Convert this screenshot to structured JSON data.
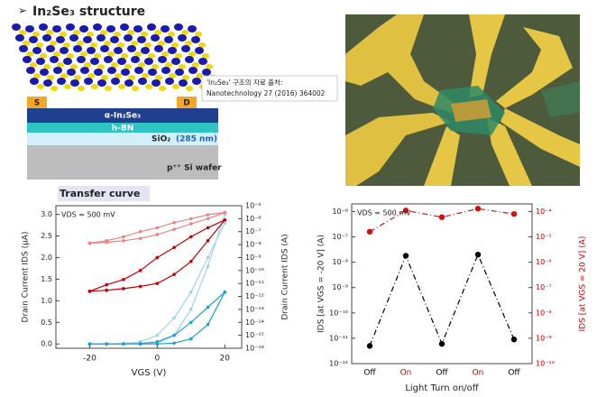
{
  "header": {
    "bullet": "➢",
    "title": "In₂Se₃ structure"
  },
  "device": {
    "source": "S",
    "drain": "D",
    "channel": "α-In₂Se₃",
    "dielectric": "h-BN",
    "oxide": "SiO₂",
    "oxide_thickness": "(285 nm)",
    "substrate": "p⁺⁺ Si wafer"
  },
  "citation": {
    "line1": "'In₂Se₃' 구조의 자료 출처:",
    "line2": "Nanotechnology 27 (2016) 364002"
  },
  "chart_data": [
    {
      "type": "line",
      "title": "Transfer curve",
      "annotation": "VDS = 500 mV",
      "x_label": "VGS (V)",
      "y_label": "Drain Current IDS (μA)",
      "y2_label": "Drain Current IDS (A)",
      "x": [
        -20,
        -15,
        -10,
        -5,
        0,
        5,
        10,
        15,
        20
      ],
      "xlim": [
        -30,
        25
      ],
      "xticks": [
        -20,
        0,
        20
      ],
      "ylim": [
        -0.1,
        3.2
      ],
      "yticks": [
        {
          "value": 0,
          "label": "0.0"
        },
        0.5,
        {
          "value": 1,
          "label": "1.0"
        },
        1.5,
        {
          "value": 2,
          "label": "2.0"
        },
        2.5,
        {
          "value": 3,
          "label": "3.0"
        }
      ],
      "y2lim": [
        1e-16,
        1e-05
      ],
      "y2log": true,
      "y2ticks": [
        {
          "value": 1e-05,
          "label": "10⁻⁵"
        },
        {
          "value": 1e-06,
          "label": "10⁻⁶"
        },
        {
          "value": 1e-07,
          "label": "10⁻⁷"
        },
        {
          "value": 1e-08,
          "label": "10⁻⁸"
        },
        {
          "value": 1e-09,
          "label": "10⁻⁹"
        },
        {
          "value": 1e-10,
          "label": "10⁻¹⁰"
        },
        {
          "value": 1e-11,
          "label": "10⁻¹¹"
        },
        {
          "value": 1e-12,
          "label": "10⁻¹²"
        },
        {
          "value": 1e-13,
          "label": "10⁻¹³"
        },
        {
          "value": 1e-14,
          "label": "10⁻¹⁴"
        },
        {
          "value": 1e-15,
          "label": "10⁻¹⁵"
        },
        {
          "value": 1e-16,
          "label": "10⁻¹⁶"
        }
      ],
      "series": [
        {
          "color": "#9fd3ea",
          "values": [
            0,
            0,
            0,
            0,
            0.02,
            0.2,
            0.8,
            1.8,
            3.0
          ]
        },
        {
          "color": "#9fd3ea",
          "values": [
            0,
            0,
            0.01,
            0.05,
            0.2,
            0.6,
            1.2,
            2.0,
            2.8
          ]
        },
        {
          "color": "#1aa3c9",
          "values": [
            0,
            0,
            0,
            0,
            0,
            0.02,
            0.12,
            0.45,
            1.2
          ]
        },
        {
          "color": "#1aa3c9",
          "values": [
            0,
            0,
            0,
            0.01,
            0.05,
            0.2,
            0.5,
            0.85,
            1.2
          ]
        },
        {
          "color": "#f08080",
          "axis": "y2",
          "values": [
            1.3e-08,
            2e-08,
            4e-08,
            1e-07,
            2e-07,
            5e-07,
            1e-06,
            2e-06,
            3e-06
          ]
        },
        {
          "color": "#f08080",
          "axis": "y2",
          "values": [
            1.3e-08,
            1.5e-08,
            2e-08,
            3e-08,
            6e-08,
            1.5e-07,
            4e-07,
            1e-06,
            3e-06
          ]
        },
        {
          "color": "#c00000",
          "axis": "y2",
          "values": [
            2.5e-12,
            8e-12,
            2e-11,
            1e-10,
            1e-09,
            6e-09,
            4e-08,
            2e-07,
            8e-07
          ]
        },
        {
          "color": "#c00000",
          "axis": "y2",
          "values": [
            2.5e-12,
            3e-12,
            4e-12,
            6e-12,
            1e-11,
            5e-11,
            5e-10,
            2e-08,
            8e-07
          ]
        }
      ]
    },
    {
      "type": "line",
      "annotation": "VDS = 500 mV",
      "x_label": "Light Turn on/off",
      "y_label": "IDS [at VGS = -20 V] (A)",
      "y2_label": "IDS [at VGS = 20 V] (A)",
      "y2_color": "#c00000",
      "categories": [
        "Off",
        "On",
        "Off",
        "On",
        "Off"
      ],
      "category_colors": [
        "#000000",
        "#c00000",
        "#000000",
        "#c00000",
        "#000000"
      ],
      "ylim": [
        1e-12,
        2e-06
      ],
      "ylog": true,
      "yticks": [
        {
          "value": 1e-06,
          "label": "10⁻⁶"
        },
        {
          "value": 1e-07,
          "label": "10⁻⁷"
        },
        {
          "value": 1e-08,
          "label": "10⁻⁸"
        },
        {
          "value": 1e-09,
          "label": "10⁻⁹"
        },
        {
          "value": 1e-10,
          "label": "10⁻¹⁰"
        },
        {
          "value": 1e-11,
          "label": "10⁻¹¹"
        },
        {
          "value": 1e-12,
          "label": "10⁻¹²"
        }
      ],
      "y2lim": [
        1e-10,
        0.0002
      ],
      "y2log": true,
      "y2ticks": [
        {
          "value": 0.0001,
          "label": "10⁻⁴"
        },
        {
          "value": 1e-05,
          "label": "10⁻⁵"
        },
        {
          "value": 1e-06,
          "label": "10⁻⁶"
        },
        {
          "value": 1e-07,
          "label": "10⁻⁷"
        },
        {
          "value": 1e-08,
          "label": "10⁻⁸"
        },
        {
          "value": 1e-09,
          "label": "10⁻⁹"
        },
        {
          "value": 1e-10,
          "label": "10⁻¹⁰"
        }
      ],
      "series": [
        {
          "color": "#000000",
          "style": "dashdot",
          "values": [
            5e-12,
            1.8e-08,
            6e-12,
            2e-08,
            9e-12
          ]
        },
        {
          "color": "#d01010",
          "style": "dashdot",
          "axis": "y2",
          "values": [
            1.6e-05,
            0.00011,
            6e-05,
            0.00013,
            8e-05
          ]
        }
      ]
    }
  ]
}
